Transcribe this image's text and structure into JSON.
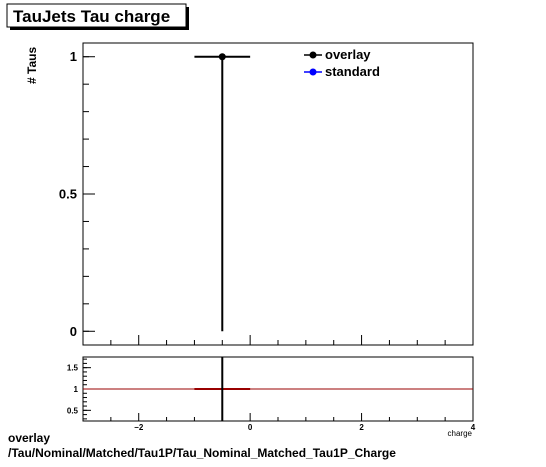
{
  "chart_data": [
    {
      "type": "scatter",
      "title": "TauJets Tau charge",
      "xlabel": "charge",
      "ylabel": "# Taus",
      "xlim": [
        -3,
        4
      ],
      "ylim": [
        -0.05,
        1.05
      ],
      "y_ticks": [
        {
          "value": 0,
          "label": "0"
        },
        {
          "value": 0.5,
          "label": "0.5"
        },
        {
          "value": 1,
          "label": "1"
        }
      ],
      "series": [
        {
          "name": "overlay",
          "color": "#000000",
          "marker": "filled-circle",
          "points": [
            {
              "x": -0.5,
              "y": 1,
              "xerr": 0.5,
              "yerr_low": 1,
              "yerr_high": 0
            }
          ]
        },
        {
          "name": "standard",
          "color": "#0000ff",
          "marker": "filled-circle",
          "points": []
        }
      ],
      "legend": "top-right",
      "grid": false
    },
    {
      "type": "line",
      "title": "",
      "xlim": [
        -3,
        4
      ],
      "ylim": [
        0.25,
        1.75
      ],
      "x_ticks": [
        {
          "value": -2,
          "label": "−2"
        },
        {
          "value": 0,
          "label": "0"
        },
        {
          "value": 2,
          "label": "2"
        },
        {
          "value": 4,
          "label": "4"
        }
      ],
      "y_ticks": [
        {
          "value": 0.5,
          "label": "0.5"
        },
        {
          "value": 1,
          "label": "1"
        },
        {
          "value": 1.5,
          "label": "1.5"
        }
      ],
      "reference_line": {
        "y": 1,
        "color": "#990000"
      },
      "ratio_points": [
        {
          "x": -0.5,
          "y": 1,
          "xerr": 0.5,
          "color": "#990000"
        }
      ],
      "cursor_line_x": -0.5,
      "grid": false
    }
  ],
  "footer": {
    "line1": "overlay",
    "line2": "/Tau/Nominal/Matched/Tau1P/Tau_Nominal_Matched_Tau1P_Charge"
  }
}
